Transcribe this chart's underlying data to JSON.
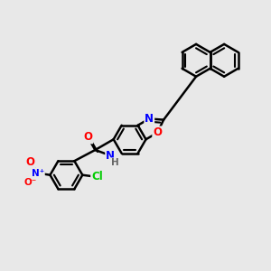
{
  "bg_color": "#e8e8e8",
  "bond_color": "#000000",
  "bond_width": 1.8,
  "atom_colors": {
    "O": "#ff0000",
    "N": "#0000ff",
    "Cl": "#00cc00",
    "H": "#666666"
  },
  "font_size": 8.5
}
